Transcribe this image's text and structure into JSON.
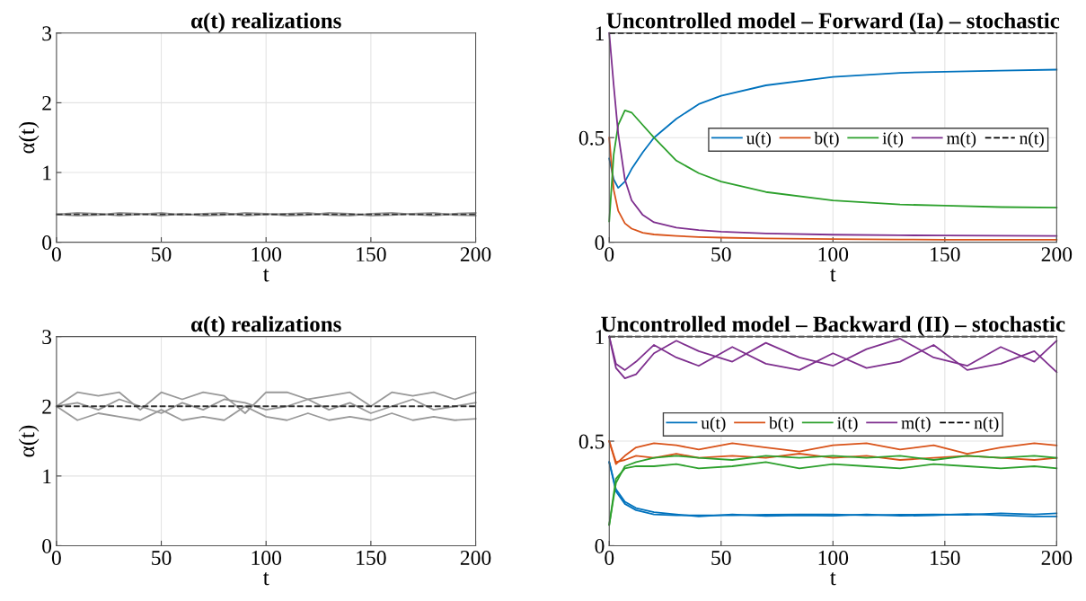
{
  "chart_data": [
    {
      "type": "line",
      "title": "α(t) realizations",
      "xlabel": "t",
      "ylabel": "α(t)",
      "xlim": [
        0,
        200
      ],
      "ylim": [
        0,
        3
      ],
      "xticks": [
        0,
        50,
        100,
        150,
        200
      ],
      "yticks": [
        0,
        1,
        2,
        3
      ],
      "grid": true,
      "legend": false,
      "x": [
        0,
        10,
        20,
        30,
        40,
        50,
        60,
        70,
        80,
        90,
        100,
        110,
        120,
        130,
        140,
        150,
        160,
        170,
        180,
        190,
        200
      ],
      "series": [
        {
          "color": "#999999",
          "values": [
            0.4,
            0.42,
            0.41,
            0.38,
            0.4,
            0.42,
            0.39,
            0.41,
            0.42,
            0.38,
            0.4,
            0.41,
            0.42,
            0.39,
            0.38,
            0.41,
            0.42,
            0.4,
            0.38,
            0.41,
            0.42
          ]
        },
        {
          "color": "#999999",
          "values": [
            0.4,
            0.38,
            0.39,
            0.42,
            0.41,
            0.38,
            0.41,
            0.38,
            0.39,
            0.42,
            0.41,
            0.38,
            0.39,
            0.42,
            0.41,
            0.38,
            0.39,
            0.41,
            0.42,
            0.39,
            0.38
          ]
        },
        {
          "color": "#333333",
          "line_style": "dashed",
          "values": [
            0.4,
            0.4,
            0.4,
            0.4,
            0.4,
            0.4,
            0.4,
            0.4,
            0.4,
            0.4,
            0.4,
            0.4,
            0.4,
            0.4,
            0.4,
            0.4,
            0.4,
            0.4,
            0.4,
            0.4,
            0.4
          ]
        }
      ]
    },
    {
      "type": "line",
      "title": "Uncontrolled model – Forward (Ia) – stochastic",
      "xlabel": "t",
      "xlim": [
        0,
        200
      ],
      "ylim": [
        0,
        1
      ],
      "xticks": [
        0,
        50,
        100,
        150,
        200
      ],
      "yticks": [
        0,
        0.5,
        1
      ],
      "grid": true,
      "legend": "right",
      "x": [
        0,
        2,
        4,
        7,
        10,
        15,
        20,
        30,
        40,
        50,
        70,
        100,
        130,
        150,
        175,
        200
      ],
      "series": [
        {
          "name": "u(t)",
          "color": "#0072bd",
          "values": [
            0.4,
            0.3,
            0.26,
            0.29,
            0.35,
            0.43,
            0.5,
            0.59,
            0.66,
            0.7,
            0.75,
            0.79,
            0.81,
            0.815,
            0.82,
            0.825
          ]
        },
        {
          "name": "b(t)",
          "color": "#d95319",
          "values": [
            0.5,
            0.25,
            0.15,
            0.09,
            0.065,
            0.045,
            0.037,
            0.03,
            0.025,
            0.022,
            0.018,
            0.015,
            0.013,
            0.012,
            0.012,
            0.012
          ]
        },
        {
          "name": "i(t)",
          "color": "#2ca02c",
          "values": [
            0.1,
            0.42,
            0.56,
            0.63,
            0.62,
            0.56,
            0.5,
            0.39,
            0.33,
            0.29,
            0.24,
            0.2,
            0.18,
            0.175,
            0.168,
            0.165
          ]
        },
        {
          "name": "m(t)",
          "color": "#7e2f8e",
          "values": [
            1.0,
            0.75,
            0.52,
            0.3,
            0.2,
            0.13,
            0.095,
            0.07,
            0.058,
            0.05,
            0.042,
            0.036,
            0.033,
            0.032,
            0.031,
            0.03
          ]
        },
        {
          "name": "n(t)",
          "color": "#000000",
          "line_style": "dashed",
          "values": [
            1,
            1,
            1,
            1,
            1,
            1,
            1,
            1,
            1,
            1,
            1,
            1,
            1,
            1,
            1,
            1
          ]
        }
      ]
    },
    {
      "type": "line",
      "title": "α(t) realizations",
      "xlabel": "t",
      "ylabel": "α(t)",
      "xlim": [
        0,
        200
      ],
      "ylim": [
        0,
        3
      ],
      "xticks": [
        0,
        50,
        100,
        150,
        200
      ],
      "yticks": [
        0,
        1,
        2,
        3
      ],
      "grid": true,
      "legend": false,
      "x": [
        0,
        10,
        20,
        30,
        40,
        50,
        60,
        70,
        80,
        90,
        100,
        110,
        120,
        130,
        140,
        150,
        160,
        170,
        180,
        190,
        200
      ],
      "series": [
        {
          "color": "#999999",
          "values": [
            2.0,
            2.2,
            2.15,
            2.2,
            1.95,
            2.2,
            2.1,
            2.2,
            2.15,
            1.9,
            2.2,
            2.2,
            2.1,
            2.15,
            2.2,
            2.0,
            2.2,
            2.15,
            2.2,
            2.1,
            2.2
          ]
        },
        {
          "color": "#999999",
          "values": [
            2.0,
            1.8,
            1.9,
            1.85,
            1.8,
            1.95,
            1.8,
            1.85,
            1.8,
            2.0,
            1.85,
            1.8,
            1.9,
            1.8,
            1.85,
            1.8,
            1.9,
            1.8,
            1.85,
            1.8,
            1.82
          ]
        },
        {
          "color": "#999999",
          "values": [
            2.0,
            2.05,
            1.95,
            2.1,
            2.0,
            1.9,
            2.05,
            1.95,
            2.1,
            2.05,
            1.95,
            2.0,
            2.1,
            1.95,
            2.05,
            1.9,
            2.0,
            2.1,
            1.95,
            2.0,
            2.05
          ]
        },
        {
          "color": "#333333",
          "line_style": "dashed",
          "values": [
            2,
            2,
            2,
            2,
            2,
            2,
            2,
            2,
            2,
            2,
            2,
            2,
            2,
            2,
            2,
            2,
            2,
            2,
            2,
            2,
            2
          ]
        }
      ]
    },
    {
      "type": "line",
      "title": "Uncontrolled model – Backward (II) – stochastic",
      "xlabel": "t",
      "xlim": [
        0,
        200
      ],
      "ylim": [
        0,
        1
      ],
      "xticks": [
        0,
        50,
        100,
        150,
        200
      ],
      "yticks": [
        0,
        0.5,
        1
      ],
      "grid": true,
      "legend": "center",
      "x": [
        0,
        3,
        7,
        12,
        20,
        30,
        40,
        55,
        70,
        85,
        100,
        115,
        130,
        145,
        160,
        175,
        190,
        200
      ],
      "series": [
        {
          "name": "u(t)",
          "color": "#0072bd",
          "values": [
            0.4,
            0.26,
            0.2,
            0.17,
            0.15,
            0.145,
            0.145,
            0.145,
            0.148,
            0.15,
            0.15,
            0.145,
            0.148,
            0.15,
            0.148,
            0.155,
            0.15,
            0.155
          ]
        },
        {
          "color": "#0072bd",
          "values": [
            0.4,
            0.27,
            0.21,
            0.18,
            0.16,
            0.15,
            0.14,
            0.15,
            0.142,
            0.145,
            0.143,
            0.15,
            0.143,
            0.145,
            0.152,
            0.145,
            0.14,
            0.14
          ]
        },
        {
          "name": "b(t)",
          "color": "#d95319",
          "values": [
            0.5,
            0.39,
            0.43,
            0.47,
            0.49,
            0.48,
            0.46,
            0.49,
            0.47,
            0.45,
            0.48,
            0.49,
            0.46,
            0.48,
            0.44,
            0.47,
            0.49,
            0.48
          ]
        },
        {
          "color": "#d95319",
          "values": [
            0.5,
            0.4,
            0.41,
            0.43,
            0.42,
            0.44,
            0.42,
            0.43,
            0.42,
            0.44,
            0.42,
            0.43,
            0.41,
            0.42,
            0.43,
            0.42,
            0.41,
            0.42
          ]
        },
        {
          "name": "i(t)",
          "color": "#2ca02c",
          "values": [
            0.1,
            0.3,
            0.38,
            0.4,
            0.42,
            0.43,
            0.42,
            0.41,
            0.43,
            0.42,
            0.43,
            0.42,
            0.43,
            0.41,
            0.43,
            0.42,
            0.43,
            0.42
          ]
        },
        {
          "color": "#2ca02c",
          "values": [
            0.1,
            0.32,
            0.37,
            0.38,
            0.38,
            0.39,
            0.37,
            0.38,
            0.4,
            0.37,
            0.39,
            0.38,
            0.37,
            0.39,
            0.38,
            0.37,
            0.38,
            0.37
          ]
        },
        {
          "name": "m(t)",
          "color": "#7e2f8e",
          "values": [
            1.0,
            0.85,
            0.8,
            0.82,
            0.92,
            0.98,
            0.93,
            0.88,
            0.97,
            0.9,
            0.86,
            0.94,
            0.99,
            0.9,
            0.86,
            0.95,
            0.88,
            0.98
          ]
        },
        {
          "color": "#7e2f8e",
          "values": [
            1.0,
            0.87,
            0.84,
            0.88,
            0.96,
            0.9,
            0.86,
            0.95,
            0.87,
            0.84,
            0.92,
            0.85,
            0.88,
            0.96,
            0.84,
            0.87,
            0.93,
            0.83
          ]
        },
        {
          "name": "n(t)",
          "color": "#000000",
          "line_style": "dashed",
          "values": [
            1,
            1,
            1,
            1,
            1,
            1,
            1,
            1,
            1,
            1,
            1,
            1,
            1,
            1,
            1,
            1,
            1,
            1
          ]
        }
      ]
    }
  ]
}
